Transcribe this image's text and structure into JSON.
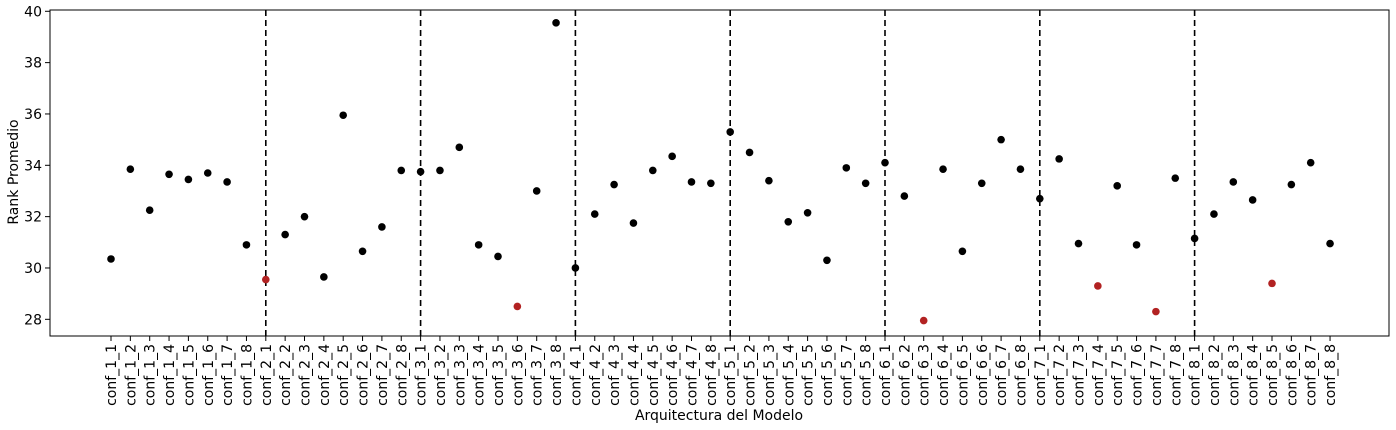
{
  "chart_data": {
    "type": "scatter",
    "title": "",
    "xlabel": "Arquitectura del Modelo",
    "ylabel": "Rank Promedio",
    "ylim": [
      27.35,
      40.05
    ],
    "yticks": [
      28,
      30,
      32,
      34,
      36,
      38,
      40
    ],
    "grid": false,
    "categories": [
      "conf_1_1",
      "conf_1_2",
      "conf_1_3",
      "conf_1_4",
      "conf_1_5",
      "conf_1_6",
      "conf_1_7",
      "conf_1_8",
      "conf_2_1",
      "conf_2_2",
      "conf_2_3",
      "conf_2_4",
      "conf_2_5",
      "conf_2_6",
      "conf_2_7",
      "conf_2_8",
      "conf_3_1",
      "conf_3_2",
      "conf_3_3",
      "conf_3_4",
      "conf_3_5",
      "conf_3_6",
      "conf_3_7",
      "conf_3_8",
      "conf_4_1",
      "conf_4_2",
      "conf_4_3",
      "conf_4_4",
      "conf_4_5",
      "conf_4_6",
      "conf_4_7",
      "conf_4_8",
      "conf_5_1",
      "conf_5_2",
      "conf_5_3",
      "conf_5_4",
      "conf_5_5",
      "conf_5_6",
      "conf_5_7",
      "conf_5_8",
      "conf_6_1",
      "conf_6_2",
      "conf_6_3",
      "conf_6_4",
      "conf_6_5",
      "conf_6_6",
      "conf_6_7",
      "conf_6_8",
      "conf_7_1",
      "conf_7_2",
      "conf_7_3",
      "conf_7_4",
      "conf_7_5",
      "conf_7_6",
      "conf_7_7",
      "conf_7_8",
      "conf_8_1",
      "conf_8_2",
      "conf_8_3",
      "conf_8_4",
      "conf_8_5",
      "conf_8_6",
      "conf_8_7",
      "conf_8_8"
    ],
    "values": [
      30.35,
      33.85,
      32.25,
      33.65,
      33.45,
      33.7,
      33.35,
      30.9,
      29.55,
      31.3,
      32.0,
      29.65,
      35.95,
      30.65,
      31.6,
      33.8,
      33.75,
      33.8,
      34.7,
      30.9,
      30.45,
      28.5,
      33.0,
      39.55,
      30.0,
      32.1,
      33.25,
      31.75,
      33.8,
      34.35,
      33.35,
      33.3,
      35.3,
      34.5,
      33.4,
      31.8,
      32.15,
      30.3,
      33.9,
      33.3,
      34.1,
      32.8,
      27.95,
      33.85,
      30.65,
      33.3,
      35.0,
      33.85,
      32.7,
      34.25,
      30.95,
      29.3,
      33.2,
      30.9,
      28.3,
      33.5,
      31.15,
      32.1,
      33.35,
      32.65,
      29.4,
      33.25,
      34.1,
      30.95
    ],
    "highlighted_indices": [
      8,
      21,
      42,
      51,
      54,
      60
    ],
    "colors": {
      "point": "#000000",
      "highlight": "#b22222",
      "divider": "#000000"
    },
    "group_dividers_after": [
      "conf_1_8",
      "conf_2_8",
      "conf_3_8",
      "conf_4_8",
      "conf_5_8",
      "conf_6_8",
      "conf_7_8"
    ]
  }
}
